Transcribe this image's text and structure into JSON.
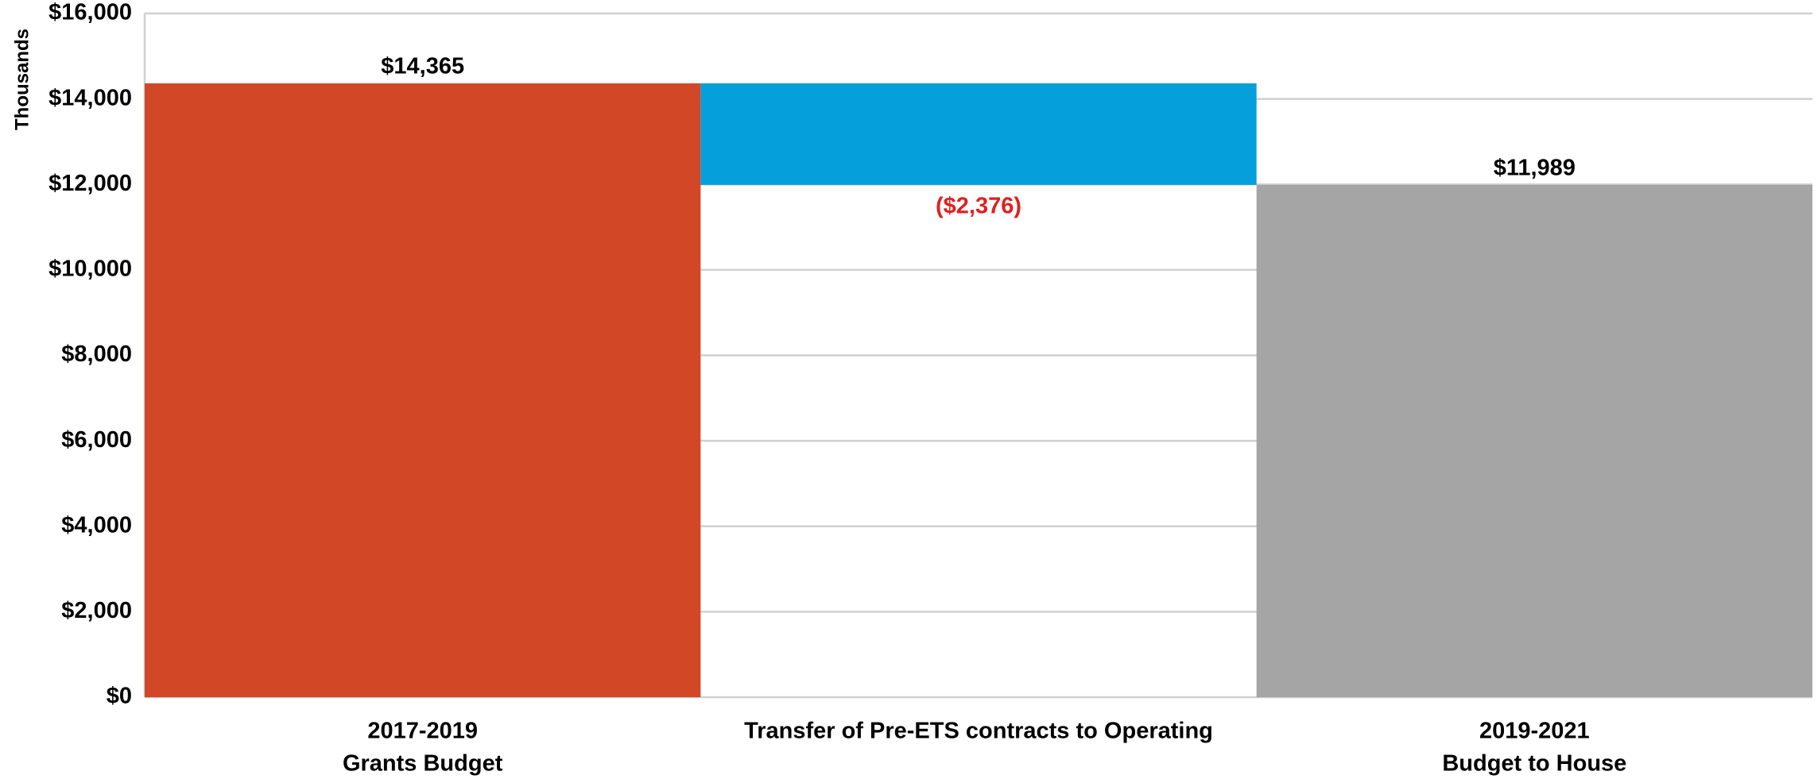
{
  "chart_data": {
    "type": "waterfall",
    "y_axis_label": "Thousands",
    "categories": [
      [
        "2017-2019",
        "Grants Budget"
      ],
      [
        "Transfer of Pre-ETS contracts to Operating"
      ],
      [
        "2019-2021",
        "Budget to House"
      ]
    ],
    "values": [
      14365,
      -2376,
      11989
    ],
    "value_labels": [
      "$14,365",
      "($2,376)",
      "$11,989"
    ],
    "totals": [
      true,
      false,
      true
    ],
    "colors": [
      "#d24726",
      "#059fdb",
      "#a5a5a5"
    ],
    "label_colors": [
      "#000000",
      "#e01f1f",
      "#000000"
    ],
    "ylim": [
      0,
      16000
    ],
    "yticks": [
      {
        "value": 0,
        "label": "$0"
      },
      {
        "value": 2000,
        "label": "$2,000"
      },
      {
        "value": 4000,
        "label": "$4,000"
      },
      {
        "value": 6000,
        "label": "$6,000"
      },
      {
        "value": 8000,
        "label": "$8,000"
      },
      {
        "value": 10000,
        "label": "$10,000"
      },
      {
        "value": 12000,
        "label": "$12,000"
      },
      {
        "value": 14000,
        "label": "$14,000"
      },
      {
        "value": 16000,
        "label": "$16,000"
      }
    ],
    "grid": true
  }
}
